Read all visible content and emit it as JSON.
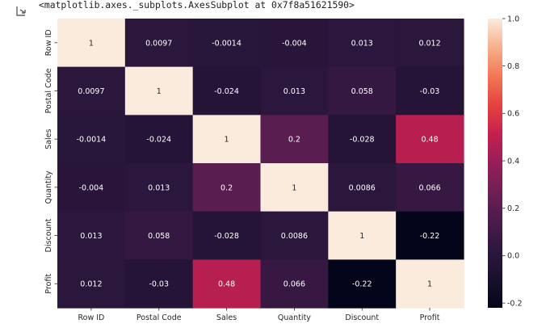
{
  "output": {
    "repr": "<matplotlib.axes._subplots.AxesSubplot at 0x7f8a51621590>",
    "icon": "output-arrow-icon"
  },
  "chart_data": {
    "type": "heatmap",
    "title": "",
    "xlabel": "",
    "ylabel": "",
    "x_categories": [
      "Row ID",
      "Postal Code",
      "Sales",
      "Quantity",
      "Discount",
      "Profit"
    ],
    "y_categories": [
      "Row ID",
      "Postal Code",
      "Sales",
      "Quantity",
      "Discount",
      "Profit"
    ],
    "values": [
      [
        1,
        0.0097,
        -0.0014,
        -0.004,
        0.013,
        0.012
      ],
      [
        0.0097,
        1,
        -0.024,
        0.013,
        0.058,
        -0.03
      ],
      [
        -0.0014,
        -0.024,
        1,
        0.2,
        -0.028,
        0.48
      ],
      [
        -0.004,
        0.013,
        0.2,
        1,
        0.0086,
        0.066
      ],
      [
        0.013,
        0.058,
        -0.028,
        0.0086,
        1,
        -0.22
      ],
      [
        0.012,
        -0.03,
        0.48,
        0.066,
        -0.22,
        1
      ]
    ],
    "annotations": [
      [
        "1",
        "0.0097",
        "-0.0014",
        "-0.004",
        "0.013",
        "0.012"
      ],
      [
        "0.0097",
        "1",
        "-0.024",
        "0.013",
        "0.058",
        "-0.03"
      ],
      [
        "-0.0014",
        "-0.024",
        "1",
        "0.2",
        "-0.028",
        "0.48"
      ],
      [
        "-0.004",
        "0.013",
        "0.2",
        "1",
        "0.0086",
        "0.066"
      ],
      [
        "0.013",
        "0.058",
        "-0.028",
        "0.0086",
        "1",
        "-0.22"
      ],
      [
        "0.012",
        "-0.03",
        "0.48",
        "0.066",
        "-0.22",
        "1"
      ]
    ],
    "colormap": "rocket",
    "vmin": -0.22,
    "vmax": 1.0,
    "colorbar": {
      "ticks": [
        1.0,
        0.8,
        0.6,
        0.4,
        0.2,
        0.0,
        -0.2
      ],
      "tick_labels": [
        "1.0",
        "0.8",
        "0.6",
        "0.4",
        "0.2",
        "0.0",
        "-0.2"
      ]
    },
    "annot_color_light": "#ffffff",
    "annot_color_dark": "#262626"
  }
}
